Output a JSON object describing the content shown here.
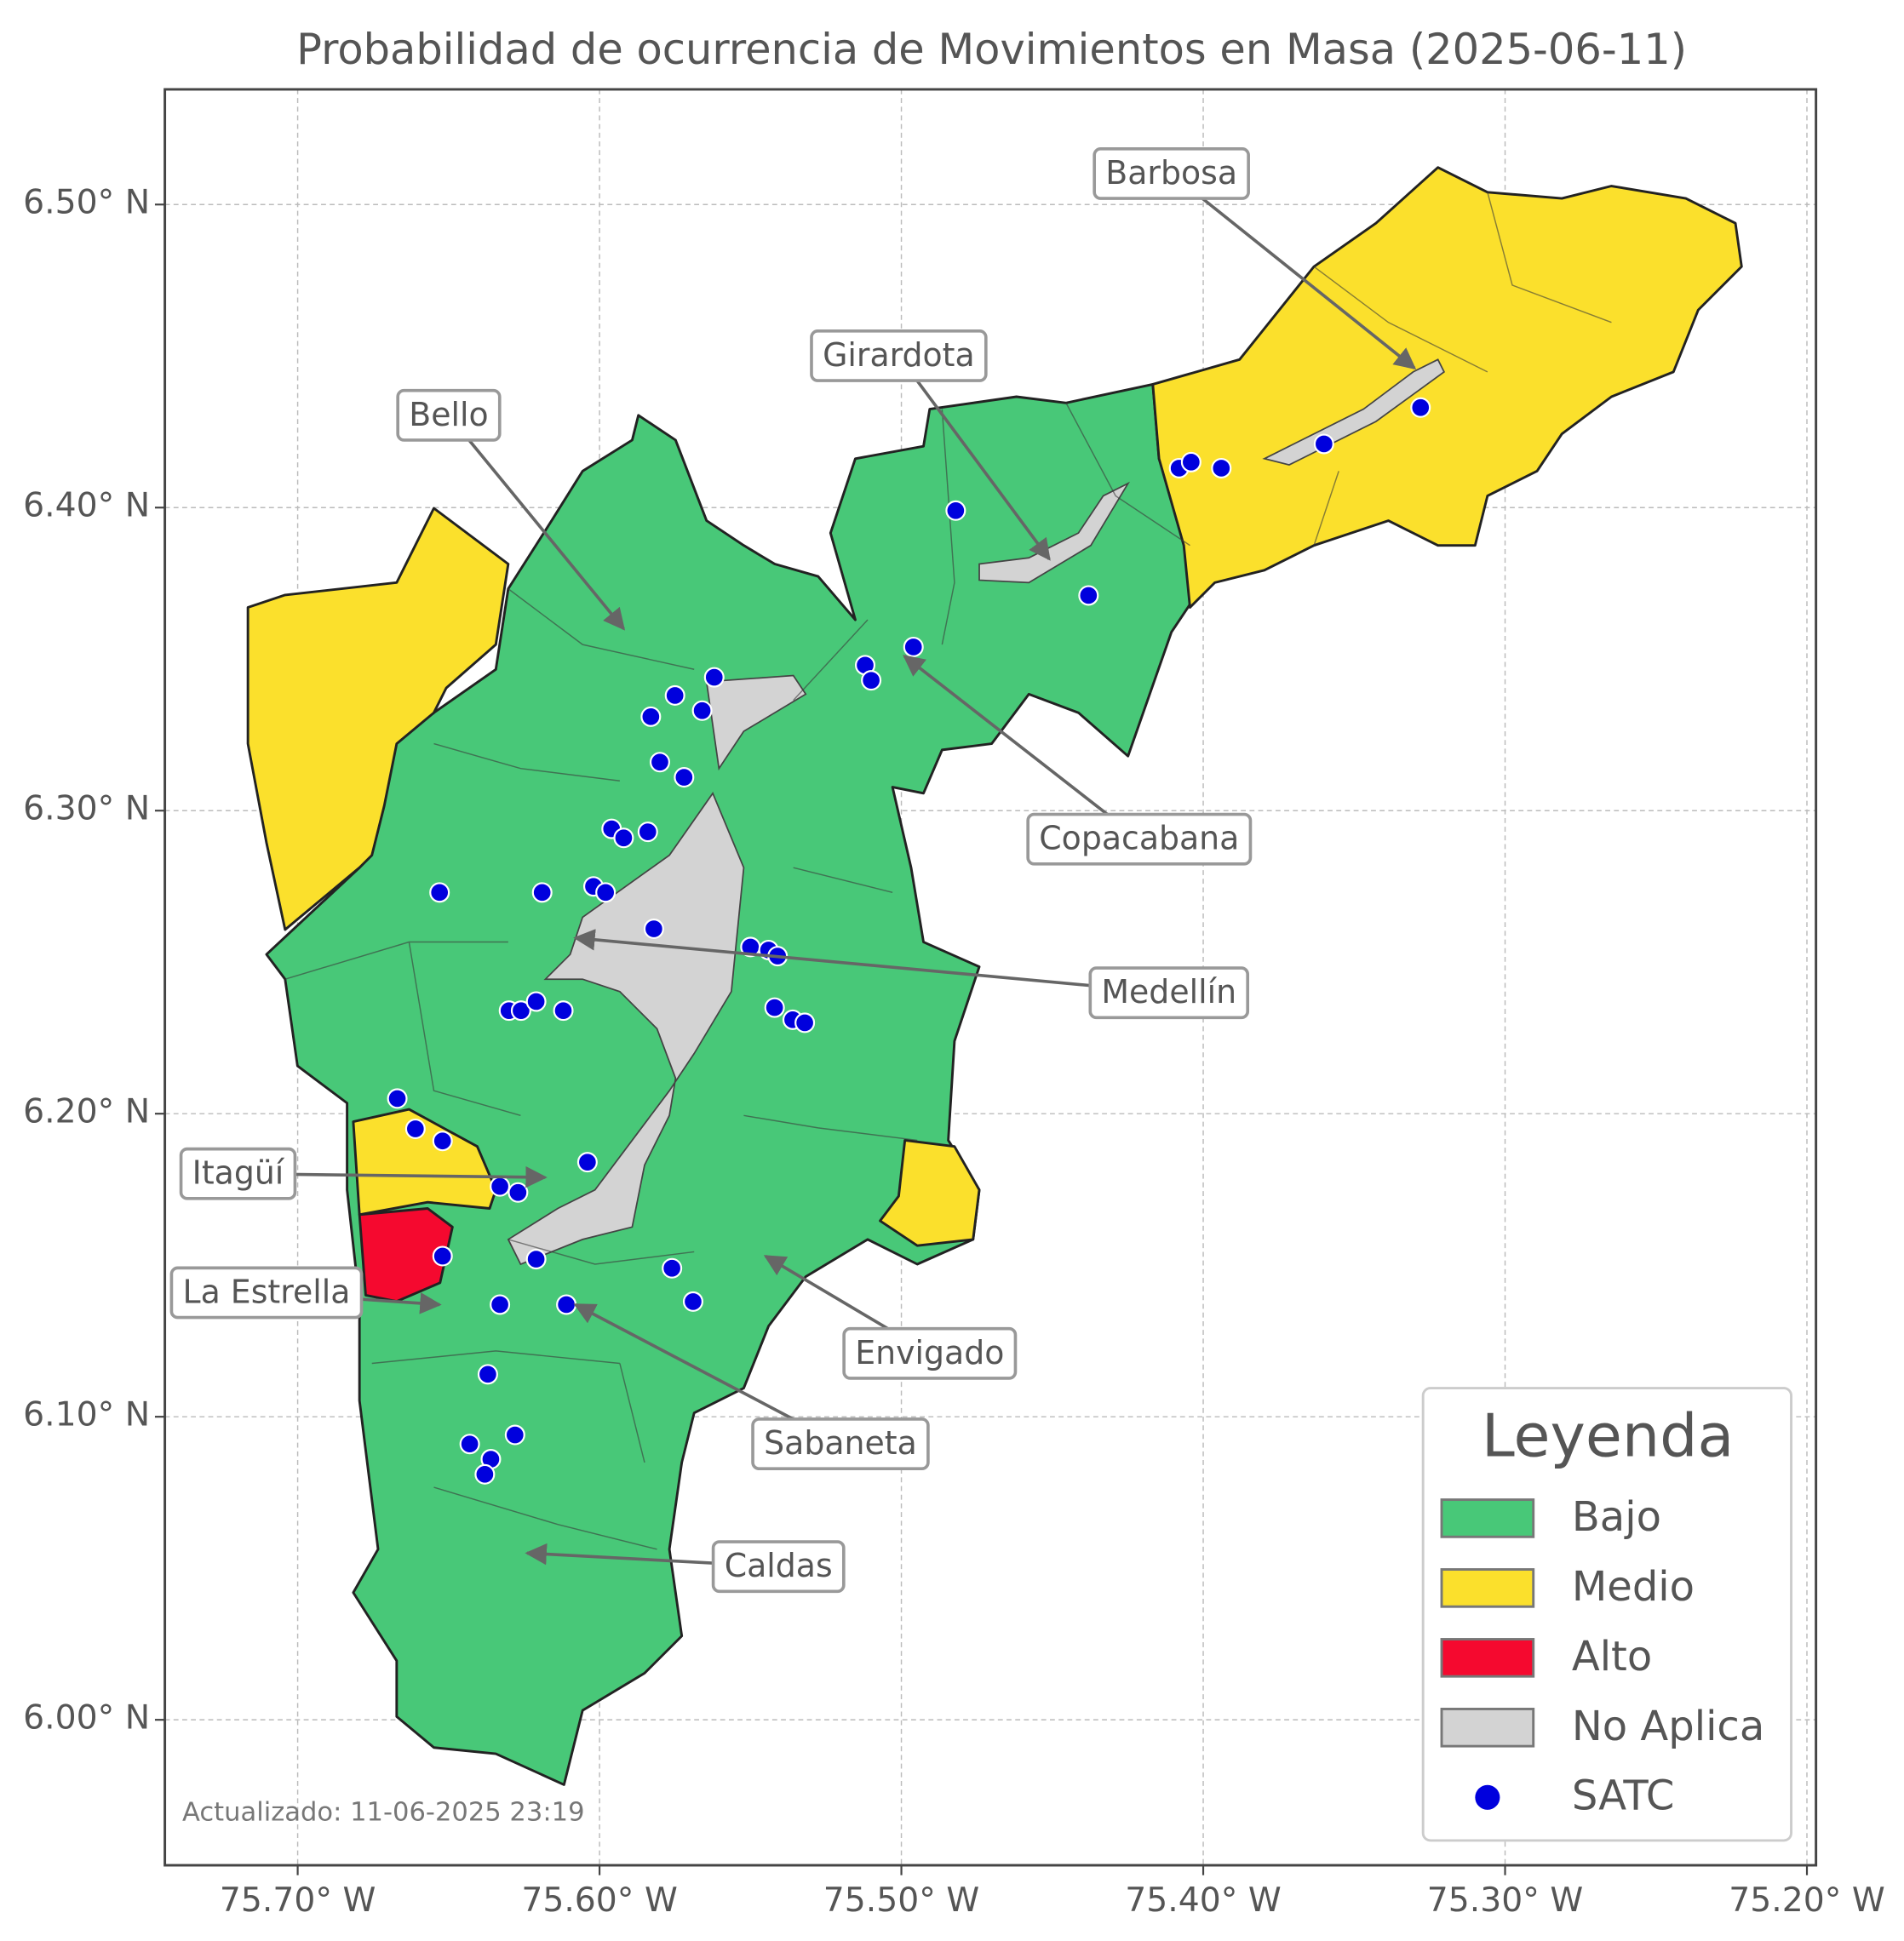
{
  "map": {
    "title": "Probabilidad de ocurrencia de Movimientos en Masa (2025-06-11)",
    "xlim": [
      -75.744,
      -75.197
    ],
    "ylim": [
      5.952,
      6.538
    ],
    "xticks": [
      {
        "value": -75.7,
        "label": "75.70° W"
      },
      {
        "value": -75.6,
        "label": "75.60° W"
      },
      {
        "value": -75.5,
        "label": "75.50° W"
      },
      {
        "value": -75.4,
        "label": "75.40° W"
      },
      {
        "value": -75.3,
        "label": "75.30° W"
      },
      {
        "value": -75.2,
        "label": "75.20° W"
      }
    ],
    "yticks": [
      {
        "value": 6.0,
        "label": "6.00° N"
      },
      {
        "value": 6.1,
        "label": "6.10° N"
      },
      {
        "value": 6.2,
        "label": "6.20° N"
      },
      {
        "value": 6.3,
        "label": "6.30° N"
      },
      {
        "value": 6.4,
        "label": "6.40° N"
      },
      {
        "value": 6.5,
        "label": "6.50° N"
      }
    ],
    "grid": true,
    "legend": {
      "title": "Leyenda",
      "corner": "lower right",
      "items": [
        {
          "label": "Bajo",
          "color": "#48c878"
        },
        {
          "label": "Medio",
          "color": "#fbe02c"
        },
        {
          "label": "Alto",
          "color": "#f5092f"
        },
        {
          "label": "No Aplica",
          "color": "#d3d3d3"
        },
        {
          "label": "SATC",
          "color": "#0000dd"
        }
      ]
    },
    "stations": [
      [
        -75.482,
        6.399
      ],
      [
        -75.408,
        6.413
      ],
      [
        -75.404,
        6.415
      ],
      [
        -75.394,
        6.413
      ],
      [
        -75.36,
        6.421
      ],
      [
        -75.328,
        6.433
      ],
      [
        -75.438,
        6.371
      ],
      [
        -75.496,
        6.354
      ],
      [
        -75.512,
        6.348
      ],
      [
        -75.51,
        6.343
      ],
      [
        -75.562,
        6.344
      ],
      [
        -75.575,
        6.338
      ],
      [
        -75.566,
        6.333
      ],
      [
        -75.583,
        6.331
      ],
      [
        -75.58,
        6.316
      ],
      [
        -75.572,
        6.311
      ],
      [
        -75.596,
        6.294
      ],
      [
        -75.592,
        6.291
      ],
      [
        -75.584,
        6.293
      ],
      [
        -75.653,
        6.273
      ],
      [
        -75.619,
        6.273
      ],
      [
        -75.602,
        6.275
      ],
      [
        -75.598,
        6.273
      ],
      [
        -75.582,
        6.261
      ],
      [
        -75.55,
        6.255
      ],
      [
        -75.544,
        6.254
      ],
      [
        -75.541,
        6.252
      ],
      [
        -75.542,
        6.235
      ],
      [
        -75.536,
        6.231
      ],
      [
        -75.532,
        6.23
      ],
      [
        -75.63,
        6.234
      ],
      [
        -75.626,
        6.234
      ],
      [
        -75.621,
        6.237
      ],
      [
        -75.612,
        6.234
      ],
      [
        -75.667,
        6.205
      ],
      [
        -75.661,
        6.195
      ],
      [
        -75.652,
        6.191
      ],
      [
        -75.604,
        6.184
      ],
      [
        -75.633,
        6.176
      ],
      [
        -75.627,
        6.174
      ],
      [
        -75.652,
        6.153
      ],
      [
        -75.621,
        6.152
      ],
      [
        -75.576,
        6.149
      ],
      [
        -75.569,
        6.138
      ],
      [
        -75.633,
        6.137
      ],
      [
        -75.611,
        6.137
      ],
      [
        -75.637,
        6.114
      ],
      [
        -75.643,
        6.091
      ],
      [
        -75.628,
        6.094
      ],
      [
        -75.636,
        6.086
      ],
      [
        -75.638,
        6.081
      ]
    ],
    "annotations": [
      {
        "label": "Barbosa",
        "lon": -75.33,
        "lat": 6.446
      },
      {
        "label": "Girardota",
        "lon": -75.451,
        "lat": 6.383
      },
      {
        "label": "Bello",
        "lon": -75.592,
        "lat": 6.36
      },
      {
        "label": "Copacabana",
        "lon": -75.499,
        "lat": 6.351
      },
      {
        "label": "Medellín",
        "lon": -75.608,
        "lat": 6.258
      },
      {
        "label": "Itagüí",
        "lon": -75.618,
        "lat": 6.179
      },
      {
        "label": "La Estrella",
        "lon": -75.653,
        "lat": 6.137
      },
      {
        "label": "Envigado",
        "lon": -75.545,
        "lat": 6.153
      },
      {
        "label": "Sabaneta",
        "lon": -75.608,
        "lat": 6.137
      },
      {
        "label": "Caldas",
        "lon": -75.624,
        "lat": 6.055
      }
    ],
    "footer": "Actualizado: 11-06-2025 23:19"
  }
}
